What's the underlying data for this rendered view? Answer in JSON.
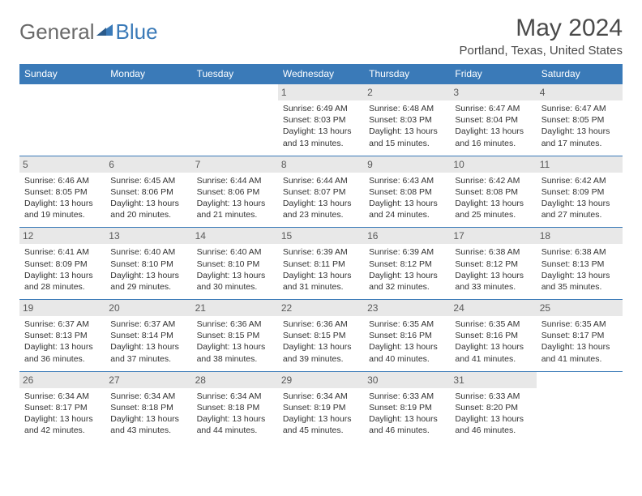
{
  "logo": {
    "text1": "General",
    "text2": "Blue"
  },
  "header": {
    "title": "May 2024",
    "location": "Portland, Texas, United States"
  },
  "colors": {
    "brand": "#3a7ab8",
    "daynum_bg": "#e8e8e8",
    "text": "#333333",
    "title_text": "#4a4a4a",
    "logo_gray": "#6a6a6a"
  },
  "dayNames": [
    "Sunday",
    "Monday",
    "Tuesday",
    "Wednesday",
    "Thursday",
    "Friday",
    "Saturday"
  ],
  "weeks": [
    [
      null,
      null,
      null,
      {
        "n": "1",
        "sr": "6:49 AM",
        "ss": "8:03 PM",
        "dl": "13 hours and 13 minutes."
      },
      {
        "n": "2",
        "sr": "6:48 AM",
        "ss": "8:03 PM",
        "dl": "13 hours and 15 minutes."
      },
      {
        "n": "3",
        "sr": "6:47 AM",
        "ss": "8:04 PM",
        "dl": "13 hours and 16 minutes."
      },
      {
        "n": "4",
        "sr": "6:47 AM",
        "ss": "8:05 PM",
        "dl": "13 hours and 17 minutes."
      }
    ],
    [
      {
        "n": "5",
        "sr": "6:46 AM",
        "ss": "8:05 PM",
        "dl": "13 hours and 19 minutes."
      },
      {
        "n": "6",
        "sr": "6:45 AM",
        "ss": "8:06 PM",
        "dl": "13 hours and 20 minutes."
      },
      {
        "n": "7",
        "sr": "6:44 AM",
        "ss": "8:06 PM",
        "dl": "13 hours and 21 minutes."
      },
      {
        "n": "8",
        "sr": "6:44 AM",
        "ss": "8:07 PM",
        "dl": "13 hours and 23 minutes."
      },
      {
        "n": "9",
        "sr": "6:43 AM",
        "ss": "8:08 PM",
        "dl": "13 hours and 24 minutes."
      },
      {
        "n": "10",
        "sr": "6:42 AM",
        "ss": "8:08 PM",
        "dl": "13 hours and 25 minutes."
      },
      {
        "n": "11",
        "sr": "6:42 AM",
        "ss": "8:09 PM",
        "dl": "13 hours and 27 minutes."
      }
    ],
    [
      {
        "n": "12",
        "sr": "6:41 AM",
        "ss": "8:09 PM",
        "dl": "13 hours and 28 minutes."
      },
      {
        "n": "13",
        "sr": "6:40 AM",
        "ss": "8:10 PM",
        "dl": "13 hours and 29 minutes."
      },
      {
        "n": "14",
        "sr": "6:40 AM",
        "ss": "8:10 PM",
        "dl": "13 hours and 30 minutes."
      },
      {
        "n": "15",
        "sr": "6:39 AM",
        "ss": "8:11 PM",
        "dl": "13 hours and 31 minutes."
      },
      {
        "n": "16",
        "sr": "6:39 AM",
        "ss": "8:12 PM",
        "dl": "13 hours and 32 minutes."
      },
      {
        "n": "17",
        "sr": "6:38 AM",
        "ss": "8:12 PM",
        "dl": "13 hours and 33 minutes."
      },
      {
        "n": "18",
        "sr": "6:38 AM",
        "ss": "8:13 PM",
        "dl": "13 hours and 35 minutes."
      }
    ],
    [
      {
        "n": "19",
        "sr": "6:37 AM",
        "ss": "8:13 PM",
        "dl": "13 hours and 36 minutes."
      },
      {
        "n": "20",
        "sr": "6:37 AM",
        "ss": "8:14 PM",
        "dl": "13 hours and 37 minutes."
      },
      {
        "n": "21",
        "sr": "6:36 AM",
        "ss": "8:15 PM",
        "dl": "13 hours and 38 minutes."
      },
      {
        "n": "22",
        "sr": "6:36 AM",
        "ss": "8:15 PM",
        "dl": "13 hours and 39 minutes."
      },
      {
        "n": "23",
        "sr": "6:35 AM",
        "ss": "8:16 PM",
        "dl": "13 hours and 40 minutes."
      },
      {
        "n": "24",
        "sr": "6:35 AM",
        "ss": "8:16 PM",
        "dl": "13 hours and 41 minutes."
      },
      {
        "n": "25",
        "sr": "6:35 AM",
        "ss": "8:17 PM",
        "dl": "13 hours and 41 minutes."
      }
    ],
    [
      {
        "n": "26",
        "sr": "6:34 AM",
        "ss": "8:17 PM",
        "dl": "13 hours and 42 minutes."
      },
      {
        "n": "27",
        "sr": "6:34 AM",
        "ss": "8:18 PM",
        "dl": "13 hours and 43 minutes."
      },
      {
        "n": "28",
        "sr": "6:34 AM",
        "ss": "8:18 PM",
        "dl": "13 hours and 44 minutes."
      },
      {
        "n": "29",
        "sr": "6:34 AM",
        "ss": "8:19 PM",
        "dl": "13 hours and 45 minutes."
      },
      {
        "n": "30",
        "sr": "6:33 AM",
        "ss": "8:19 PM",
        "dl": "13 hours and 46 minutes."
      },
      {
        "n": "31",
        "sr": "6:33 AM",
        "ss": "8:20 PM",
        "dl": "13 hours and 46 minutes."
      },
      null
    ]
  ],
  "labels": {
    "sunrise": "Sunrise:",
    "sunset": "Sunset:",
    "daylight": "Daylight:"
  }
}
